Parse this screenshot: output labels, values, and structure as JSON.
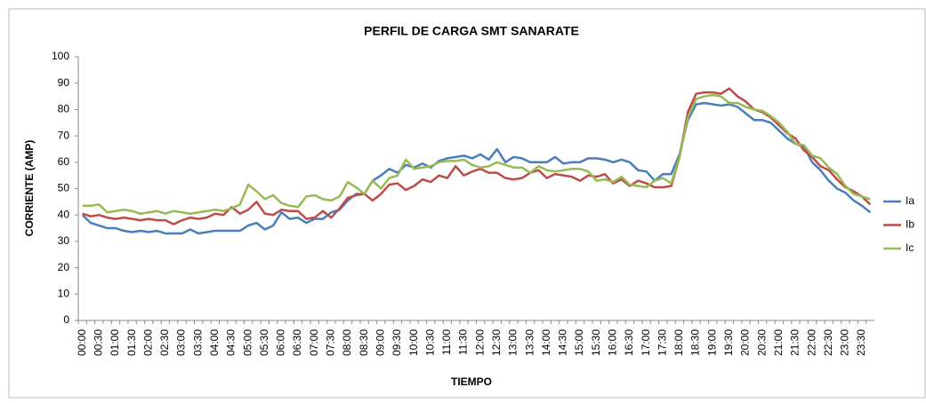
{
  "chart_data": {
    "type": "line",
    "title": "PERFIL DE CARGA SMT SANARATE",
    "x_label": "TIEMPO",
    "y_label": "CORRIENTE (AMP)",
    "categories": [
      "00:00",
      null,
      "00:30",
      null,
      "01:00",
      null,
      "01:30",
      null,
      "02:00",
      null,
      "02:30",
      null,
      "03:00",
      null,
      "03:30",
      null,
      "04:00",
      null,
      "04:30",
      null,
      "05:00",
      null,
      "05:30",
      null,
      "06:00",
      null,
      "06:30",
      null,
      "07:00",
      null,
      "07:30",
      null,
      "08:00",
      null,
      "08:30",
      null,
      "09:00",
      null,
      "09:30",
      null,
      "10:00",
      null,
      "10:30",
      null,
      "11:00",
      null,
      "11:30",
      null,
      "12:00",
      null,
      "12:30",
      null,
      "13:00",
      null,
      "13:30",
      null,
      "14:00",
      null,
      "14:30",
      null,
      "15:00",
      null,
      "15:30",
      null,
      "16:00",
      null,
      "16:30",
      null,
      "17:00",
      null,
      "17:30",
      null,
      "18:00",
      null,
      "18:30",
      null,
      "19:00",
      null,
      "19:30",
      null,
      "20:00",
      null,
      "20:30",
      null,
      "21:00",
      null,
      "21:30",
      null,
      "22:00",
      null,
      "22:30",
      null,
      "23:00",
      null,
      "23:30",
      null
    ],
    "series": [
      {
        "name": "Ia",
        "color": "#4a7ebb",
        "values": [
          40,
          37,
          36,
          35,
          35,
          34,
          33.5,
          34,
          33.5,
          34,
          33,
          33,
          33,
          34.5,
          33,
          33.5,
          34,
          34,
          34,
          34,
          36,
          37,
          34.5,
          36,
          41,
          38.5,
          39,
          37,
          38.5,
          38.5,
          41,
          42,
          45.5,
          48,
          48,
          53,
          55,
          57.5,
          56,
          59,
          58,
          59.5,
          58,
          60.5,
          61.5,
          62,
          62.5,
          61.5,
          63,
          61,
          65,
          60,
          62,
          61.5,
          60,
          60,
          60,
          62,
          59.5,
          60,
          60,
          61.5,
          61.5,
          61,
          60,
          61,
          60,
          57,
          56.5,
          53,
          55.5,
          55.5,
          63,
          76,
          82,
          82.5,
          82,
          81.5,
          82,
          81,
          78.5,
          76,
          76,
          75,
          72,
          69,
          67,
          66,
          60,
          57,
          53,
          50,
          48.5,
          45.5,
          43.5,
          41
        ]
      },
      {
        "name": "Ib",
        "color": "#be4b48",
        "values": [
          40.5,
          39.5,
          40,
          39,
          38.5,
          39,
          38.5,
          38,
          38.5,
          38,
          38,
          36.5,
          38,
          39,
          38.5,
          39,
          40.5,
          40,
          43,
          40.5,
          42,
          45,
          40.5,
          40,
          42,
          41.5,
          41.5,
          38.5,
          39,
          41.5,
          39,
          42.5,
          46.5,
          47.5,
          48,
          45.5,
          48,
          51.5,
          52,
          49.5,
          51,
          53.5,
          52.5,
          55,
          54,
          58.5,
          55,
          56.5,
          57.5,
          56,
          56,
          54,
          53.5,
          54,
          56,
          57,
          54,
          55.5,
          55,
          54.5,
          53,
          55,
          54.5,
          55.5,
          52,
          53.5,
          51,
          53,
          52,
          50.5,
          50.5,
          51,
          62,
          79,
          86,
          86.5,
          86.5,
          86,
          88,
          85,
          83,
          80,
          79,
          77,
          74,
          71,
          69,
          64.5,
          62,
          58.5,
          57,
          53.5,
          50.5,
          49,
          47,
          44
        ]
      },
      {
        "name": "Ic",
        "color": "#98b954",
        "values": [
          43.5,
          43.5,
          44,
          41,
          41.5,
          42,
          41.5,
          40.5,
          41,
          41.5,
          40.5,
          41.5,
          41,
          40.5,
          41,
          41.5,
          42,
          41.5,
          42.5,
          44,
          51.5,
          49,
          46,
          47.5,
          44.5,
          43.5,
          43,
          47,
          47.5,
          46,
          45.5,
          47,
          52.5,
          50.5,
          48,
          53,
          50,
          54,
          55,
          61,
          57.5,
          58,
          58.5,
          60,
          60.5,
          60.5,
          61,
          59,
          58,
          58.5,
          60,
          59,
          58,
          58,
          56,
          58.5,
          57,
          56.5,
          57,
          57.5,
          57.5,
          56.5,
          53,
          53.5,
          52.5,
          54.5,
          51.5,
          51,
          50.5,
          53,
          54,
          52,
          62,
          77,
          84,
          85,
          85.5,
          85,
          82.5,
          82.5,
          81,
          80,
          79.5,
          77.5,
          75,
          71.5,
          67,
          66.5,
          62.5,
          61.5,
          58,
          55.5,
          51,
          48,
          47,
          46
        ]
      }
    ],
    "ylim": [
      0,
      100
    ],
    "yticks": [
      0,
      10,
      20,
      30,
      40,
      50,
      60,
      70,
      80,
      90,
      100
    ],
    "grid": false,
    "legend": "right"
  }
}
